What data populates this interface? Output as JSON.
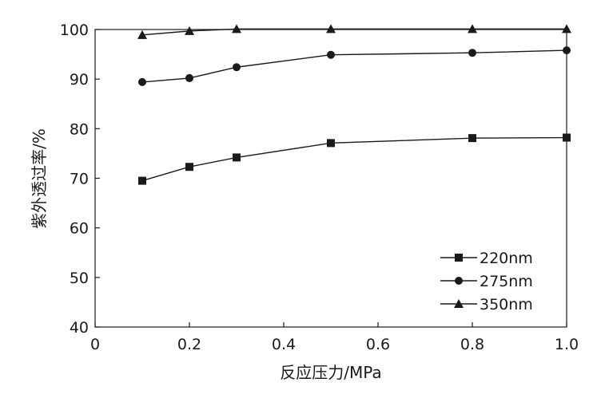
{
  "chart_data": {
    "type": "line",
    "xlabel": "反应压力/MPa",
    "ylabel": "紫外透过率/%",
    "xlim": [
      0,
      1.0
    ],
    "ylim": [
      40,
      100
    ],
    "x_ticks": [
      0,
      0.2,
      0.4,
      0.6,
      0.8,
      1.0
    ],
    "x_tick_labels": [
      "0",
      "0.2",
      "0.4",
      "0.6",
      "0.8",
      "1.0"
    ],
    "y_ticks": [
      40,
      50,
      60,
      70,
      80,
      90,
      100
    ],
    "y_tick_labels": [
      "40",
      "50",
      "60",
      "70",
      "80",
      "90",
      "100"
    ],
    "grid": false,
    "legend_position": "bottom-right",
    "series": [
      {
        "name": "220nm",
        "marker": "square",
        "x": [
          0.1,
          0.2,
          0.3,
          0.5,
          0.8,
          1.0
        ],
        "y": [
          69.5,
          72.3,
          74.2,
          77.1,
          78.1,
          78.2
        ]
      },
      {
        "name": "275nm",
        "marker": "circle",
        "x": [
          0.1,
          0.2,
          0.3,
          0.5,
          0.8,
          1.0
        ],
        "y": [
          89.4,
          90.2,
          92.4,
          94.9,
          95.3,
          95.8
        ]
      },
      {
        "name": "350nm",
        "marker": "triangle",
        "x": [
          0.1,
          0.2,
          0.3,
          0.5,
          0.8,
          1.0
        ],
        "y": [
          98.9,
          99.7,
          100.1,
          100.1,
          100.1,
          100.1
        ]
      }
    ],
    "colors": {
      "line": "#1a1a1a",
      "marker": "#1a1a1a",
      "axis": "#1a1a1a"
    }
  }
}
